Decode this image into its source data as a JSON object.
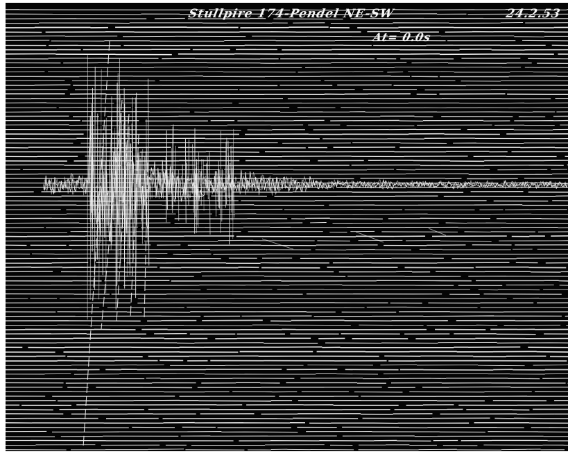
{
  "image": {
    "subject": "seismograph-record",
    "background_color": "#050505",
    "trace_color": "#f0f0f0"
  },
  "annotations": {
    "title": "Stullpire 174-Pendel NE-SW",
    "date": "24.2.53",
    "time_step": "At= 0.0s"
  }
}
